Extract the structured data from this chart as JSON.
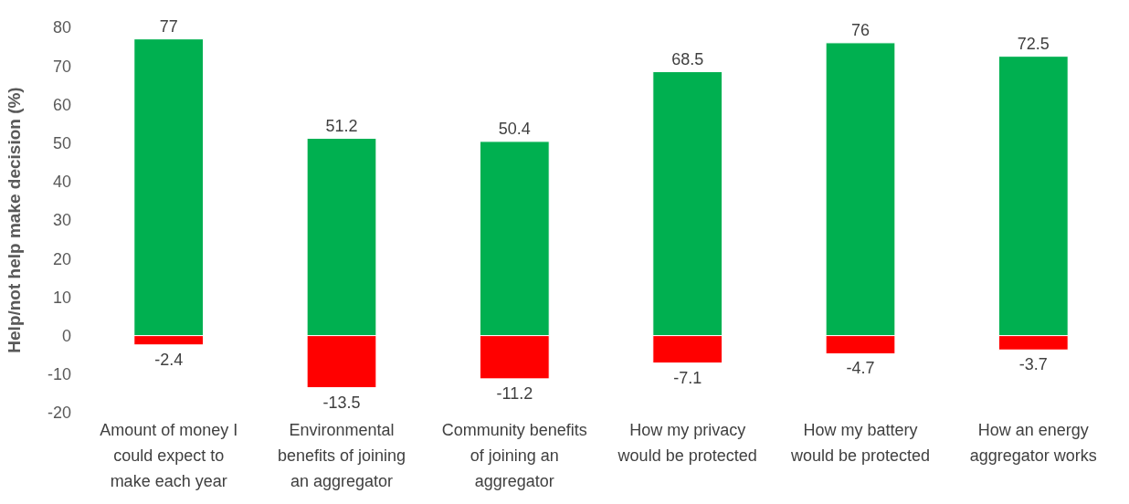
{
  "chart_data": {
    "type": "bar",
    "stacked": true,
    "ylabel": "Help/not help make decision (%)",
    "categories": [
      "Amount of money I could expect to make each year",
      "Environmental benefits of joining an aggregator",
      "Community benefits of joining an aggregator",
      "How my privacy would be protected",
      "How my battery would be protected",
      "How an energy aggregator works"
    ],
    "series": [
      {
        "color": "#00b050",
        "values": [
          77,
          51.2,
          50.4,
          68.5,
          76,
          72.5
        ]
      },
      {
        "color": "#ff0000",
        "values": [
          -2.4,
          -13.5,
          -11.2,
          -7.1,
          -4.7,
          -3.7
        ]
      }
    ],
    "ylim": [
      -20,
      80
    ],
    "yticks": [
      -20,
      -10,
      0,
      10,
      20,
      30,
      40,
      50,
      60,
      70,
      80
    ],
    "grid": false,
    "data_labels": true
  }
}
